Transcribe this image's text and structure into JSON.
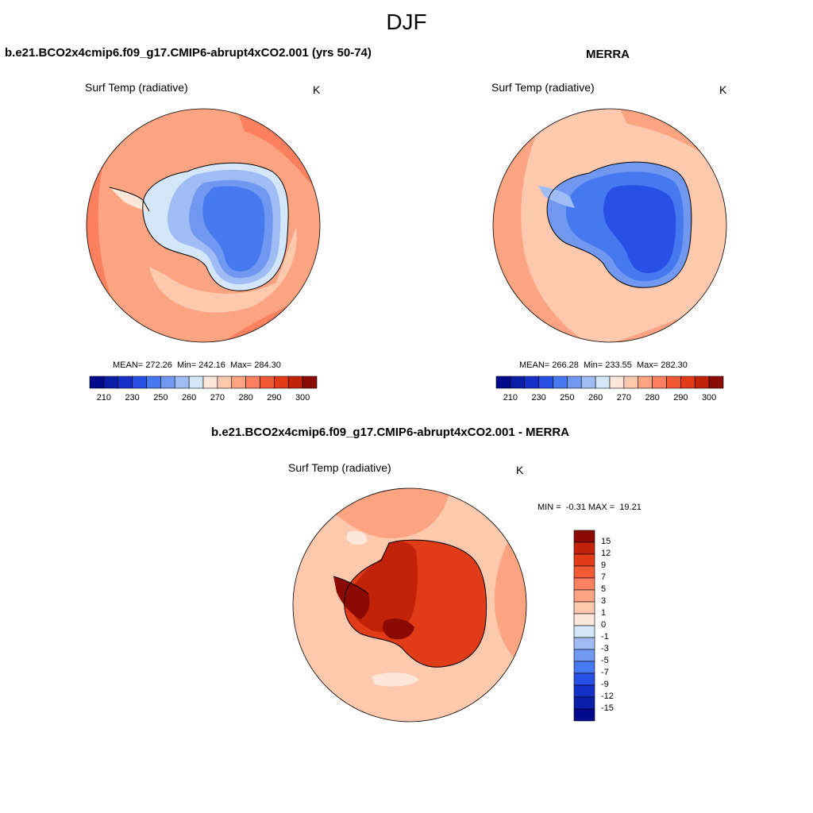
{
  "main_title": "DJF",
  "panel_left": {
    "title": "b.e21.BCO2x4cmip6.f09_g17.CMIP6-abrupt4xCO2.001 (yrs 50-74)",
    "variable": "Surf Temp (radiative)",
    "units": "K",
    "stats": "MEAN= 272.26  Min= 242.16  Max= 284.30"
  },
  "panel_right": {
    "title": "MERRA",
    "variable": "Surf Temp (radiative)",
    "units": "K",
    "stats": "MEAN= 266.28  Min= 233.55  Max= 282.30"
  },
  "panel_diff": {
    "title": "b.e21.BCO2x4cmip6.f09_g17.CMIP6-abrupt4xCO2.001 - MERRA",
    "variable": "Surf Temp (radiative)",
    "units": "K",
    "stats": "MIN =  -0.31 MAX =  19.21"
  },
  "abs_colorbar": {
    "colors": [
      "#000a8c",
      "#0a1ea8",
      "#1432c8",
      "#2850e6",
      "#4678f0",
      "#7098f0",
      "#a0bcf4",
      "#d4e6fa",
      "#fde6da",
      "#fcc8ae",
      "#fca482",
      "#fa8060",
      "#f25a34",
      "#e03c18",
      "#c22208",
      "#8c0a04"
    ],
    "labels": [
      "210",
      "230",
      "250",
      "260",
      "270",
      "280",
      "290",
      "300"
    ]
  },
  "diff_colorbar": {
    "colors": [
      "#8c0a04",
      "#c22208",
      "#e03c18",
      "#f25a34",
      "#fa8060",
      "#fca482",
      "#fcc8ae",
      "#fde6da",
      "#d4e6fa",
      "#a0bcf4",
      "#7098f0",
      "#4678f0",
      "#2850e6",
      "#1432c8",
      "#0a1ea8",
      "#000a8c"
    ],
    "labels": [
      "15",
      "12",
      "9",
      "7",
      "5",
      "3",
      "1",
      "0",
      "-1",
      "-3",
      "-5",
      "-7",
      "-9",
      "-12",
      "-15"
    ]
  },
  "map_colors": {
    "ocean_warm": "#fa8060",
    "ocean_mid": "#fca482",
    "ocean_light": "#fcc8ae",
    "ice_edge": "#d4e6fa",
    "ice_light": "#a0bcf4",
    "ice_mid": "#7098f0",
    "ice_deep": "#4678f0",
    "ice_deeper": "#2850e6",
    "diff_ocean": "#fcc8ae",
    "diff_warm": "#fca482",
    "diff_land": "#e03c18",
    "diff_land_dark": "#c22208",
    "diff_hot": "#8c0a04",
    "diff_pale": "#fde6da"
  }
}
